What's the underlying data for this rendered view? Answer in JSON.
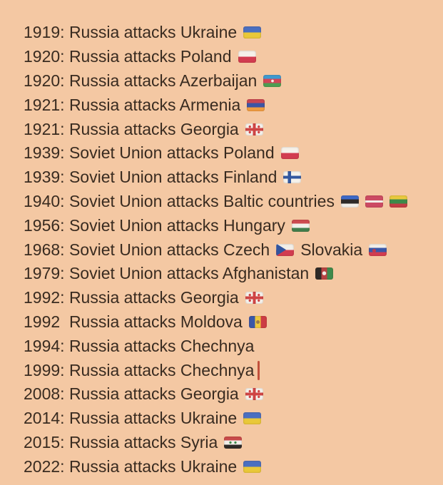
{
  "page": {
    "background_color": "#f4c8a3",
    "text_color": "#392b20",
    "cursor_color": "#c2503c"
  },
  "timeline": {
    "lines": [
      {
        "segments": [
          {
            "text": "1919: Russia attacks Ukraine"
          },
          {
            "flag": "ukraine"
          }
        ]
      },
      {
        "segments": [
          {
            "text": "1920: Russia attacks Poland"
          },
          {
            "flag": "poland"
          }
        ]
      },
      {
        "segments": [
          {
            "text": "1920: Russia attacks Azerbaijan"
          },
          {
            "flag": "azerbaijan"
          }
        ]
      },
      {
        "segments": [
          {
            "text": "1921: Russia attacks Armenia"
          },
          {
            "flag": "armenia"
          }
        ]
      },
      {
        "segments": [
          {
            "text": "1921: Russia attacks Georgia"
          },
          {
            "flag": "georgia"
          }
        ]
      },
      {
        "segments": [
          {
            "text": "1939: Soviet Union attacks Poland"
          },
          {
            "flag": "poland"
          }
        ]
      },
      {
        "segments": [
          {
            "text": "1939: Soviet Union attacks Finland"
          },
          {
            "flag": "finland"
          }
        ]
      },
      {
        "segments": [
          {
            "text": "1940: Soviet Union attacks Baltic countries"
          },
          {
            "flag": "estonia"
          },
          {
            "flag": "latvia"
          },
          {
            "flag": "lithuania"
          }
        ]
      },
      {
        "segments": [
          {
            "text": "1956: Soviet Union attacks Hungary"
          },
          {
            "flag": "hungary"
          }
        ]
      },
      {
        "segments": [
          {
            "text": "1968: Soviet Union attacks Czech"
          },
          {
            "flag": "czechia"
          },
          {
            "text": "Slovakia"
          },
          {
            "flag": "slovakia"
          }
        ]
      },
      {
        "segments": [
          {
            "text": "1979: Soviet Union attacks Afghanistan"
          },
          {
            "flag": "afghanistan"
          }
        ]
      },
      {
        "segments": [
          {
            "text": "1992: Russia attacks Georgia"
          },
          {
            "flag": "georgia"
          }
        ]
      },
      {
        "segments": [
          {
            "text": "1992  Russia attacks Moldova"
          },
          {
            "flag": "moldova"
          }
        ]
      },
      {
        "segments": [
          {
            "text": "1994: Russia attacks Chechnya"
          }
        ]
      },
      {
        "segments": [
          {
            "text": "1999: Russia attacks Chechnya"
          },
          {
            "cursor": true
          }
        ]
      },
      {
        "segments": [
          {
            "text": "2008: Russia attacks Georgia"
          },
          {
            "flag": "georgia"
          }
        ]
      },
      {
        "segments": [
          {
            "text": "2014: Russia attacks Ukraine"
          },
          {
            "flag": "ukraine"
          }
        ]
      },
      {
        "segments": [
          {
            "text": "2015: Russia attacks Syria"
          },
          {
            "flag": "syria"
          }
        ]
      },
      {
        "segments": [
          {
            "text": "2022: Russia attacks Ukraine"
          },
          {
            "flag": "ukraine"
          }
        ]
      }
    ]
  }
}
